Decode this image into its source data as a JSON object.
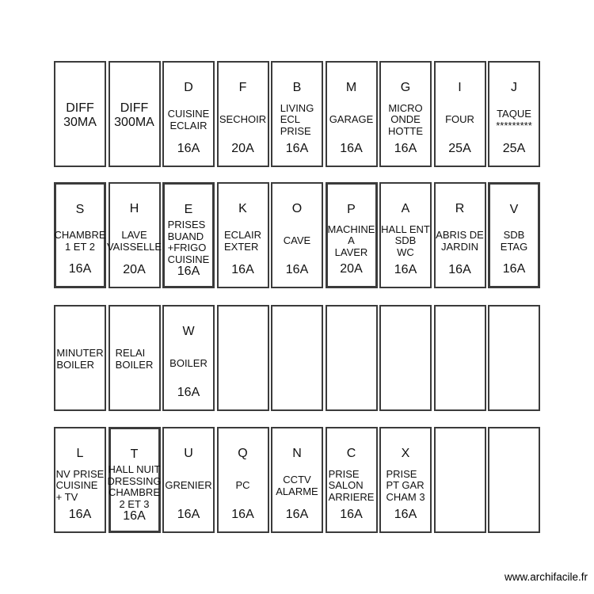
{
  "app": {
    "watermark": "www.archifacile.fr"
  },
  "panel": {
    "rows": [
      {
        "boxes": [
          {
            "name": "DIFF\n30MA",
            "big": true
          },
          {
            "name": "DIFF\n300MA",
            "big": true
          },
          {
            "code": "D",
            "name": "CUISINE\nECLAIR",
            "amp": "16A"
          },
          {
            "code": "F",
            "name": "SECHOIR",
            "amp": "20A"
          },
          {
            "code": "B",
            "name": "LIVING\nECL\nPRISE",
            "amp": "16A",
            "align": "left"
          },
          {
            "code": "M",
            "name": "GARAGE",
            "amp": "16A"
          },
          {
            "code": "G",
            "name": "MICRO\nONDE\nHOTTE",
            "amp": "16A"
          },
          {
            "code": "I",
            "name": "FOUR",
            "amp": "25A"
          },
          {
            "code": "J",
            "name": "TAQUE\n*********",
            "amp": "25A"
          }
        ]
      },
      {
        "boxes": [
          {
            "code": "S",
            "name": "CHAMBRE\n1 ET 2",
            "amp": "16A",
            "thick": true
          },
          {
            "code": "H",
            "name": "LAVE\nVAISSELLE",
            "amp": "20A"
          },
          {
            "code": "E",
            "name": "PRISES\nBUAND\n+FRIGO\nCUISINE",
            "amp": "16A",
            "align": "left",
            "thick": true
          },
          {
            "code": "K",
            "name": "ECLAIR\nEXTER",
            "amp": "16A",
            "align": "left"
          },
          {
            "code": "O",
            "name": "CAVE",
            "amp": "16A"
          },
          {
            "code": "P",
            "name": "MACHINE\nA\nLAVER",
            "amp": "20A",
            "thick": true
          },
          {
            "code": "A",
            "name": "HALL ENT\nSDB\nWC",
            "amp": "16A"
          },
          {
            "code": "R",
            "name": "ABRIS DE\nJARDIN",
            "amp": "16A"
          },
          {
            "code": "V",
            "name": "SDB\nETAG",
            "amp": "16A",
            "thick": true
          }
        ]
      },
      {
        "boxes": [
          {
            "name": "MINUTER\nBOILER",
            "align": "left"
          },
          {
            "name": "RELAI\nBOILER",
            "align": "left"
          },
          {
            "code": "W",
            "name": "BOILER",
            "amp": "16A"
          },
          {},
          {},
          {},
          {},
          {},
          {}
        ]
      },
      {
        "boxes": [
          {
            "code": "L",
            "name": "NV PRISE\nCUISINE\n+ TV",
            "amp": "16A",
            "align": "left"
          },
          {
            "code": "T",
            "name": "HALL NUIT\nDRESSING\nCHAMBRE\n2 ET 3",
            "amp": "16A",
            "thick": true
          },
          {
            "code": "U",
            "name": "GRENIER",
            "amp": "16A"
          },
          {
            "code": "Q",
            "name": "PC",
            "amp": "16A"
          },
          {
            "code": "N",
            "name": "CCTV\nALARME",
            "amp": "16A"
          },
          {
            "code": "C",
            "name": "PRISE\nSALON\nARRIERE",
            "amp": "16A",
            "align": "left"
          },
          {
            "code": "X",
            "name": "PRISE\nPT GAR\nCHAM 3",
            "amp": "16A",
            "align": "left"
          },
          {},
          {}
        ]
      }
    ]
  }
}
